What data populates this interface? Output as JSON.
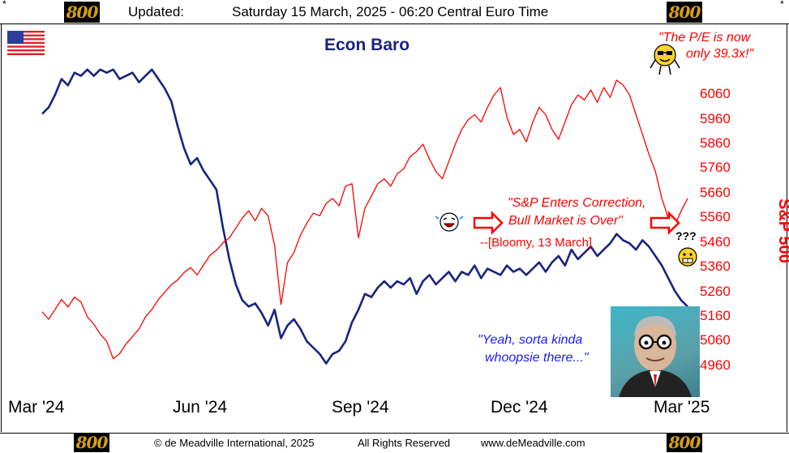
{
  "header": {
    "updated_label": "Updated:",
    "timestamp": "Saturday 15 March, 2025 - 06:20 Central Euro Time",
    "logo_text": "800",
    "corner_mark": "*"
  },
  "footer": {
    "copyright": "© de Meadville International, 2025",
    "rights": "All Rights Reserved",
    "website": "www.deMeadville.com",
    "logo_text": "800"
  },
  "colors": {
    "econ_baro": "#1a237e",
    "sp500": "#ff0000",
    "annotation_blue": "#1a1aff"
  },
  "icons": [
    "us-flag-icon",
    "smiley-icon",
    "laughing-face-icon",
    "grimace-face-icon",
    "right-arrow-icon",
    "portrait-caricature"
  ],
  "annotations": {
    "pe_quote_line1": "\"The P/E is now",
    "pe_quote_line2": "only 39.3x!\"",
    "correction_line1": "\"S&P Enters Correction,",
    "correction_line2": "Bull Market is Over\"",
    "source": "--[Bloomy, 13 March]",
    "question_marks": "???",
    "whoopsie_line1": "\"Yeah, sorta kinda",
    "whoopsie_line2": "whoopsie there...\""
  },
  "chart_data": {
    "type": "line",
    "title": "Econ Baro",
    "xlabel": "",
    "ylabel": "S&P 500",
    "x_ticks": [
      "Mar '24",
      "Jun '24",
      "Sep '24",
      "Dec '24",
      "Mar '25"
    ],
    "y_ticks": [
      6060,
      5960,
      5860,
      5760,
      5660,
      5560,
      5460,
      5360,
      5260,
      5160,
      5060,
      4960
    ],
    "ylim": [
      4900,
      6100
    ],
    "xlim": [
      0,
      100
    ],
    "grid": false,
    "series": [
      {
        "name": "Econ Baro",
        "axis": "left-unlabeled",
        "ylim": [
          0,
          100
        ],
        "points": [
          [
            0,
            84
          ],
          [
            1,
            86
          ],
          [
            2,
            90
          ],
          [
            3,
            95
          ],
          [
            4,
            93
          ],
          [
            5,
            97
          ],
          [
            6,
            96
          ],
          [
            7,
            98
          ],
          [
            8,
            96
          ],
          [
            9,
            98
          ],
          [
            10,
            97
          ],
          [
            11,
            98
          ],
          [
            12,
            95
          ],
          [
            13,
            96
          ],
          [
            14,
            97
          ],
          [
            15,
            94
          ],
          [
            16,
            96
          ],
          [
            17,
            98
          ],
          [
            18,
            95
          ],
          [
            19,
            92
          ],
          [
            20,
            88
          ],
          [
            21,
            80
          ],
          [
            22,
            73
          ],
          [
            23,
            68
          ],
          [
            24,
            70
          ],
          [
            25,
            66
          ],
          [
            26,
            63
          ],
          [
            27,
            60
          ],
          [
            28,
            48
          ],
          [
            29,
            38
          ],
          [
            30,
            30
          ],
          [
            31,
            25
          ],
          [
            32,
            23
          ],
          [
            33,
            24
          ],
          [
            34,
            21
          ],
          [
            35,
            17
          ],
          [
            36,
            22
          ],
          [
            37,
            13
          ],
          [
            38,
            17
          ],
          [
            39,
            19
          ],
          [
            40,
            16
          ],
          [
            41,
            12
          ],
          [
            42,
            10
          ],
          [
            43,
            8
          ],
          [
            44,
            5
          ],
          [
            45,
            8
          ],
          [
            46,
            9
          ],
          [
            47,
            12
          ],
          [
            48,
            18
          ],
          [
            49,
            22
          ],
          [
            50,
            27
          ],
          [
            51,
            26
          ],
          [
            52,
            29
          ],
          [
            53,
            31
          ],
          [
            54,
            29
          ],
          [
            55,
            31
          ],
          [
            56,
            30
          ],
          [
            57,
            32
          ],
          [
            58,
            27
          ],
          [
            59,
            31
          ],
          [
            60,
            33
          ],
          [
            61,
            30
          ],
          [
            62,
            32
          ],
          [
            63,
            34
          ],
          [
            64,
            31
          ],
          [
            65,
            34
          ],
          [
            66,
            33
          ],
          [
            67,
            36
          ],
          [
            68,
            32
          ],
          [
            69,
            35
          ],
          [
            70,
            34
          ],
          [
            71,
            33
          ],
          [
            72,
            36
          ],
          [
            73,
            34
          ],
          [
            74,
            35
          ],
          [
            75,
            33
          ],
          [
            76,
            35
          ],
          [
            77,
            37
          ],
          [
            78,
            34
          ],
          [
            79,
            37
          ],
          [
            80,
            39
          ],
          [
            81,
            36
          ],
          [
            82,
            41
          ],
          [
            83,
            38
          ],
          [
            84,
            40
          ],
          [
            85,
            42
          ],
          [
            86,
            39
          ],
          [
            87,
            41
          ],
          [
            88,
            43
          ],
          [
            89,
            46
          ],
          [
            90,
            44
          ],
          [
            91,
            43
          ],
          [
            92,
            41
          ],
          [
            93,
            44
          ],
          [
            94,
            42
          ],
          [
            95,
            39
          ],
          [
            96,
            36
          ],
          [
            97,
            32
          ],
          [
            98,
            28
          ],
          [
            99,
            25
          ],
          [
            100,
            23
          ]
        ]
      },
      {
        "name": "S&P 500",
        "axis": "right",
        "points": [
          [
            0,
            5180
          ],
          [
            1,
            5150
          ],
          [
            2,
            5190
          ],
          [
            3,
            5230
          ],
          [
            4,
            5200
          ],
          [
            5,
            5240
          ],
          [
            6,
            5220
          ],
          [
            7,
            5160
          ],
          [
            8,
            5130
          ],
          [
            9,
            5090
          ],
          [
            10,
            5060
          ],
          [
            11,
            4990
          ],
          [
            12,
            5010
          ],
          [
            13,
            5050
          ],
          [
            14,
            5080
          ],
          [
            15,
            5110
          ],
          [
            16,
            5160
          ],
          [
            17,
            5190
          ],
          [
            18,
            5230
          ],
          [
            19,
            5260
          ],
          [
            20,
            5290
          ],
          [
            21,
            5310
          ],
          [
            22,
            5340
          ],
          [
            23,
            5360
          ],
          [
            24,
            5330
          ],
          [
            25,
            5370
          ],
          [
            26,
            5410
          ],
          [
            27,
            5430
          ],
          [
            28,
            5460
          ],
          [
            29,
            5480
          ],
          [
            30,
            5520
          ],
          [
            31,
            5560
          ],
          [
            32,
            5590
          ],
          [
            33,
            5550
          ],
          [
            34,
            5600
          ],
          [
            35,
            5570
          ],
          [
            36,
            5450
          ],
          [
            37,
            5210
          ],
          [
            38,
            5380
          ],
          [
            39,
            5420
          ],
          [
            40,
            5490
          ],
          [
            41,
            5540
          ],
          [
            42,
            5580
          ],
          [
            43,
            5570
          ],
          [
            44,
            5620
          ],
          [
            45,
            5640
          ],
          [
            46,
            5610
          ],
          [
            47,
            5690
          ],
          [
            48,
            5700
          ],
          [
            49,
            5480
          ],
          [
            50,
            5600
          ],
          [
            51,
            5650
          ],
          [
            52,
            5700
          ],
          [
            53,
            5720
          ],
          [
            54,
            5690
          ],
          [
            55,
            5740
          ],
          [
            56,
            5760
          ],
          [
            57,
            5810
          ],
          [
            58,
            5830
          ],
          [
            59,
            5860
          ],
          [
            60,
            5800
          ],
          [
            61,
            5750
          ],
          [
            62,
            5720
          ],
          [
            63,
            5790
          ],
          [
            64,
            5860
          ],
          [
            65,
            5920
          ],
          [
            66,
            5960
          ],
          [
            67,
            5980
          ],
          [
            68,
            5950
          ],
          [
            69,
            6010
          ],
          [
            70,
            6060
          ],
          [
            71,
            6090
          ],
          [
            72,
            5970
          ],
          [
            73,
            5900
          ],
          [
            74,
            5920
          ],
          [
            75,
            5870
          ],
          [
            76,
            5950
          ],
          [
            77,
            6010
          ],
          [
            78,
            5980
          ],
          [
            79,
            5920
          ],
          [
            80,
            5880
          ],
          [
            81,
            5950
          ],
          [
            82,
            6020
          ],
          [
            83,
            6060
          ],
          [
            84,
            6040
          ],
          [
            85,
            6080
          ],
          [
            86,
            6030
          ],
          [
            87,
            6090
          ],
          [
            88,
            6050
          ],
          [
            89,
            6120
          ],
          [
            90,
            6100
          ],
          [
            91,
            6060
          ],
          [
            92,
            5980
          ],
          [
            93,
            5900
          ],
          [
            94,
            5820
          ],
          [
            95,
            5750
          ],
          [
            96,
            5640
          ],
          [
            97,
            5560
          ],
          [
            98,
            5530
          ],
          [
            99,
            5590
          ],
          [
            100,
            5640
          ]
        ]
      }
    ]
  }
}
